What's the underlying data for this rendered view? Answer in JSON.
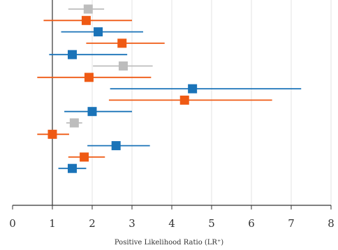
{
  "chart_data": {
    "type": "forest",
    "xlabel": "Positive Likelihood Ratio (LR⁺)",
    "xlim": [
      0,
      8
    ],
    "x_ticks": [
      0,
      1,
      2,
      3,
      4,
      5,
      6,
      7,
      8
    ],
    "reference_line": 1,
    "grid": "vertical",
    "colors": {
      "gray": "#bdbdbd",
      "orange": "#ef5a14",
      "blue": "#1a73b8"
    },
    "rows": [
      {
        "color": "gray",
        "estimate": 1.9,
        "lower": 1.4,
        "upper": 2.3
      },
      {
        "color": "orange",
        "estimate": 1.85,
        "lower": 0.78,
        "upper": 3.0
      },
      {
        "color": "blue",
        "estimate": 2.15,
        "lower": 1.22,
        "upper": 3.28
      },
      {
        "color": "orange",
        "estimate": 2.75,
        "lower": 1.85,
        "upper": 3.82
      },
      {
        "color": "blue",
        "estimate": 1.5,
        "lower": 0.92,
        "upper": 2.88
      },
      {
        "color": "gray",
        "estimate": 2.78,
        "lower": 2.02,
        "upper": 3.52
      },
      {
        "color": "orange",
        "estimate": 1.92,
        "lower": 0.62,
        "upper": 3.48
      },
      {
        "color": "blue",
        "estimate": 4.52,
        "lower": 2.45,
        "upper": 7.25
      },
      {
        "color": "orange",
        "estimate": 4.32,
        "lower": 2.42,
        "upper": 6.52
      },
      {
        "color": "blue",
        "estimate": 2.0,
        "lower": 1.3,
        "upper": 3.0
      },
      {
        "color": "gray",
        "estimate": 1.55,
        "lower": 1.35,
        "upper": 1.75
      },
      {
        "color": "orange",
        "estimate": 1.0,
        "lower": 0.62,
        "upper": 1.42
      },
      {
        "color": "blue",
        "estimate": 2.6,
        "lower": 1.88,
        "upper": 3.45
      },
      {
        "color": "orange",
        "estimate": 1.8,
        "lower": 1.4,
        "upper": 2.32
      },
      {
        "color": "blue",
        "estimate": 1.5,
        "lower": 1.15,
        "upper": 1.85
      }
    ]
  }
}
